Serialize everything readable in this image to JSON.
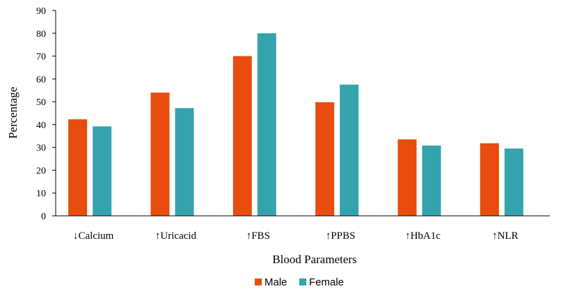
{
  "chart_data": {
    "type": "bar",
    "title": "",
    "xlabel": "Blood Parameters",
    "ylabel": "Percentage",
    "ylim": [
      0,
      90
    ],
    "yticks": [
      0,
      10,
      20,
      30,
      40,
      50,
      60,
      70,
      80,
      90
    ],
    "grid": false,
    "legend_position": "bottom",
    "categories": [
      "↓Calcium",
      "↑Uricacid",
      "↑FBS",
      "↑PPBS",
      "↑HbA1c",
      "↑NLR"
    ],
    "series": [
      {
        "name": "Male",
        "color": "#E84C0E",
        "values": [
          42.3,
          54,
          70,
          49.8,
          33.5,
          31.8
        ]
      },
      {
        "name": "Female",
        "color": "#34A3AE",
        "values": [
          39.2,
          47.2,
          80,
          57.5,
          30.8,
          29.5
        ]
      }
    ]
  }
}
